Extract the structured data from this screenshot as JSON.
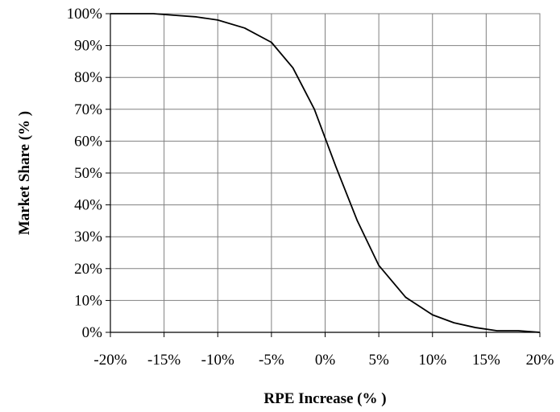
{
  "chart_data": {
    "type": "line",
    "title": "",
    "xlabel": "RPE Increase (% )",
    "ylabel": "Market Share (% )",
    "xlim": [
      -20,
      20
    ],
    "ylim": [
      0,
      100
    ],
    "grid": true,
    "x_ticks": [
      "-20%",
      "-15%",
      "-10%",
      "-5%",
      "0%",
      "5%",
      "10%",
      "15%",
      "20%"
    ],
    "y_ticks": [
      "0%",
      "10%",
      "20%",
      "30%",
      "40%",
      "50%",
      "60%",
      "70%",
      "80%",
      "90%",
      "100%"
    ],
    "series": [
      {
        "x": [
          -20,
          -18,
          -16,
          -14,
          -12,
          -10,
          -7.5,
          -5,
          -3,
          -1,
          0,
          1,
          3,
          5,
          7.5,
          10,
          12,
          14,
          16,
          18,
          20
        ],
        "y": [
          100,
          100,
          100,
          99.5,
          99,
          98,
          95.5,
          91,
          83,
          70,
          61,
          52,
          35,
          21,
          11,
          5.5,
          3,
          1.5,
          0.5,
          0.5,
          0
        ],
        "color": "#000000"
      }
    ]
  }
}
